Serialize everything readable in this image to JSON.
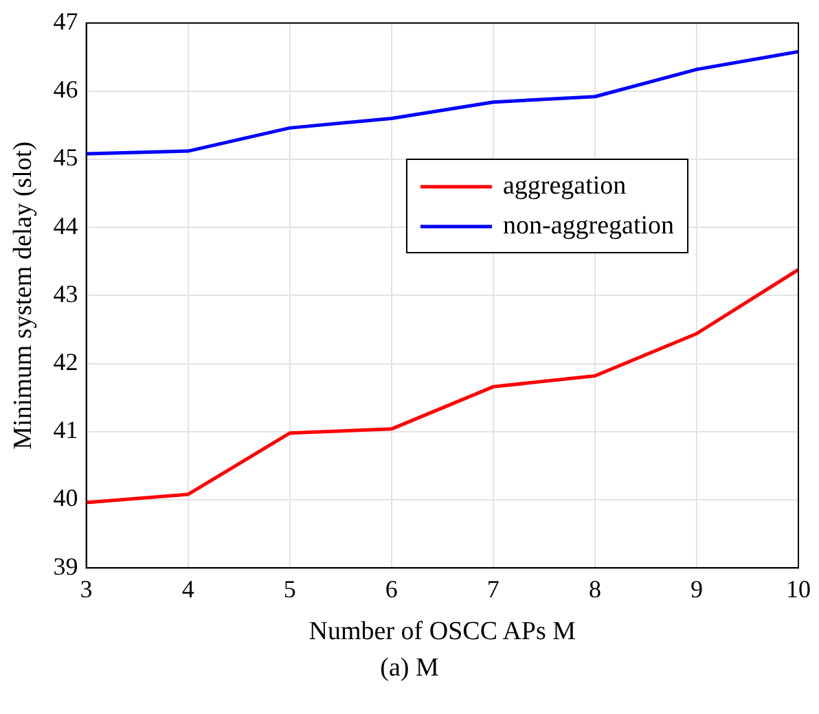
{
  "chart_data": {
    "type": "line",
    "xlabel": "Number of OSCC APs M",
    "ylabel": "Minimum system delay (slot)",
    "x": [
      3,
      4,
      5,
      6,
      7,
      8,
      9,
      10
    ],
    "series": [
      {
        "name": "aggregation",
        "color": "#ff0000",
        "values": [
          39.96,
          40.08,
          40.98,
          41.04,
          41.66,
          41.82,
          42.44,
          43.38
        ]
      },
      {
        "name": "non-aggregation",
        "color": "#0000ff",
        "values": [
          45.08,
          45.12,
          45.46,
          45.6,
          45.84,
          45.92,
          46.32,
          46.58
        ]
      }
    ],
    "xlim": [
      3,
      10
    ],
    "xticks": [
      3,
      4,
      5,
      6,
      7,
      8,
      9,
      10
    ],
    "ylim": [
      39,
      47
    ],
    "yticks": [
      39,
      40,
      41,
      42,
      43,
      44,
      45,
      46,
      47
    ],
    "grid": true,
    "legend": "right",
    "marker": "none",
    "line_style": "solid",
    "annotations": [
      "(a) M"
    ]
  }
}
